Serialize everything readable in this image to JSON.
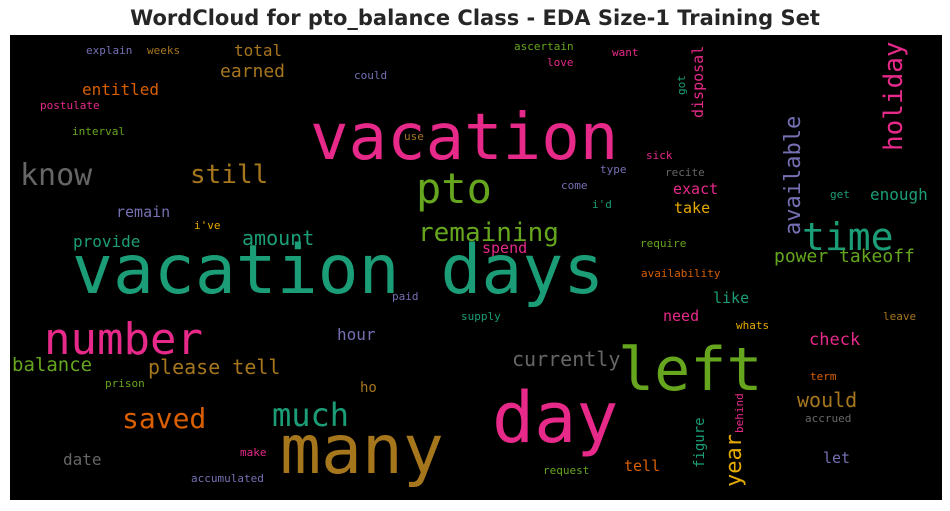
{
  "title": "WordCloud for pto_balance Class - EDA Size-1 Training Set",
  "chart_data": {
    "type": "wordcloud",
    "title": "WordCloud for pto_balance Class - EDA Size-1 Training Set",
    "background": "#000000",
    "palette": "Dark2",
    "words": [
      {
        "text": "vacation days",
        "color": "#1b9e77"
      },
      {
        "text": "vacation",
        "color": "#e7298a"
      },
      {
        "text": "many",
        "color": "#a6761d"
      },
      {
        "text": "day",
        "color": "#e7298a"
      },
      {
        "text": "left",
        "color": "#66a61e"
      },
      {
        "text": "number",
        "color": "#e7298a"
      },
      {
        "text": "pto",
        "color": "#66a61e"
      },
      {
        "text": "time",
        "color": "#1b9e77"
      },
      {
        "text": "much",
        "color": "#1b9e77"
      },
      {
        "text": "know",
        "color": "#666666"
      },
      {
        "text": "saved",
        "color": "#d95f02"
      },
      {
        "text": "remaining",
        "color": "#66a61e"
      },
      {
        "text": "holiday",
        "color": "#e7298a"
      },
      {
        "text": "still",
        "color": "#a6761d"
      },
      {
        "text": "available",
        "color": "#7570b3"
      },
      {
        "text": "please tell",
        "color": "#a6761d"
      },
      {
        "text": "currently",
        "color": "#666666"
      },
      {
        "text": "amount",
        "color": "#1b9e77"
      },
      {
        "text": "year",
        "color": "#e6ab02"
      },
      {
        "text": "balance",
        "color": "#66a61e"
      },
      {
        "text": "would",
        "color": "#a6761d"
      },
      {
        "text": "power takeoff",
        "color": "#66a61e"
      },
      {
        "text": "earned",
        "color": "#a6761d"
      },
      {
        "text": "check",
        "color": "#e7298a"
      },
      {
        "text": "entitled",
        "color": "#d95f02"
      },
      {
        "text": "total",
        "color": "#a6761d"
      },
      {
        "text": "disposal",
        "color": "#e7298a"
      },
      {
        "text": "exact",
        "color": "#e7298a"
      },
      {
        "text": "enough",
        "color": "#1b9e77"
      },
      {
        "text": "take",
        "color": "#e6ab02"
      },
      {
        "text": "provide",
        "color": "#1b9e77"
      },
      {
        "text": "remain",
        "color": "#7570b3"
      },
      {
        "text": "spend",
        "color": "#e7298a"
      },
      {
        "text": "hour",
        "color": "#7570b3"
      },
      {
        "text": "like",
        "color": "#1b9e77"
      },
      {
        "text": "need",
        "color": "#e7298a"
      },
      {
        "text": "date",
        "color": "#666666"
      },
      {
        "text": "tell",
        "color": "#d95f02"
      },
      {
        "text": "figure",
        "color": "#1b9e77"
      },
      {
        "text": "let",
        "color": "#7570b3"
      },
      {
        "text": "ho",
        "color": "#a6761d"
      },
      {
        "text": "explain",
        "color": "#7570b3"
      },
      {
        "text": "weeks",
        "color": "#a6761d"
      },
      {
        "text": "ascertain",
        "color": "#66a61e"
      },
      {
        "text": "want",
        "color": "#e7298a"
      },
      {
        "text": "love",
        "color": "#e7298a"
      },
      {
        "text": "could",
        "color": "#7570b3"
      },
      {
        "text": "postulate",
        "color": "#e7298a"
      },
      {
        "text": "interval",
        "color": "#66a61e"
      },
      {
        "text": "got",
        "color": "#1b9e77"
      },
      {
        "text": "use",
        "color": "#a6761d"
      },
      {
        "text": "sick",
        "color": "#e7298a"
      },
      {
        "text": "type",
        "color": "#7570b3"
      },
      {
        "text": "recite",
        "color": "#666666"
      },
      {
        "text": "come",
        "color": "#7570b3"
      },
      {
        "text": "i'd",
        "color": "#1b9e77"
      },
      {
        "text": "get",
        "color": "#1b9e77"
      },
      {
        "text": "i've",
        "color": "#e6ab02"
      },
      {
        "text": "require",
        "color": "#66a61e"
      },
      {
        "text": "availability",
        "color": "#d95f02"
      },
      {
        "text": "paid",
        "color": "#7570b3"
      },
      {
        "text": "supply",
        "color": "#1b9e77"
      },
      {
        "text": "leave",
        "color": "#a6761d"
      },
      {
        "text": "whats",
        "color": "#e6ab02"
      },
      {
        "text": "prison",
        "color": "#66a61e"
      },
      {
        "text": "term",
        "color": "#d95f02"
      },
      {
        "text": "behind",
        "color": "#e7298a"
      },
      {
        "text": "accrued",
        "color": "#666666"
      },
      {
        "text": "make",
        "color": "#e7298a"
      },
      {
        "text": "request",
        "color": "#66a61e"
      },
      {
        "text": "accumulated",
        "color": "#7570b3"
      }
    ]
  }
}
